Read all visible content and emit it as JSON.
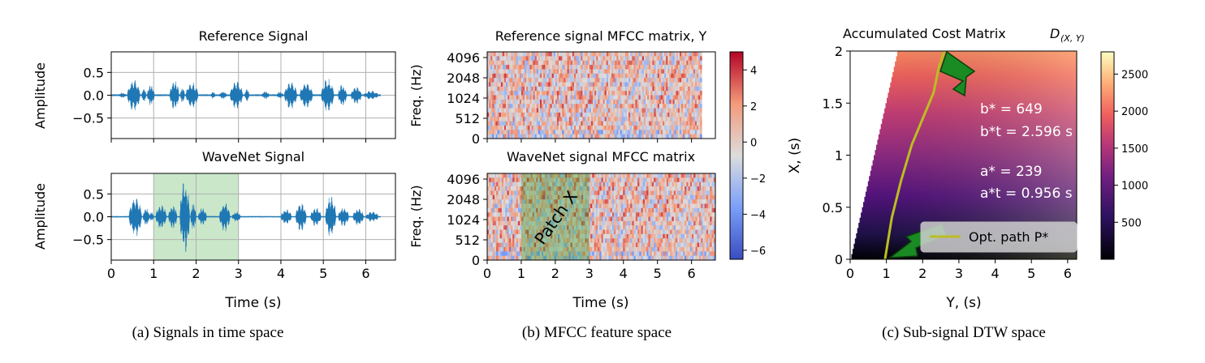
{
  "chart_data": [
    {
      "type": "line",
      "title": "Reference Signal",
      "xlabel": "",
      "ylabel": "Amplitude",
      "xlim": [
        0,
        6.7
      ],
      "ylim": [
        -0.95,
        0.95
      ],
      "xticks": [
        0,
        1,
        2,
        3,
        4,
        5,
        6
      ],
      "yticks": [
        0.5,
        0.0,
        -0.5
      ],
      "ytick_labels": [
        "0.5",
        "0.0",
        "−0.5"
      ],
      "grid": true,
      "series_color": "#1f77b4",
      "bursts": [
        {
          "t0": 0.18,
          "t1": 0.35,
          "amp": 0.06
        },
        {
          "t0": 0.38,
          "t1": 0.68,
          "amp": 0.36
        },
        {
          "t0": 0.72,
          "t1": 0.82,
          "amp": 0.16
        },
        {
          "t0": 0.85,
          "t1": 1.02,
          "amp": 0.24
        },
        {
          "t0": 1.38,
          "t1": 1.6,
          "amp": 0.33
        },
        {
          "t0": 1.63,
          "t1": 1.73,
          "amp": 0.18
        },
        {
          "t0": 1.76,
          "t1": 2.05,
          "amp": 0.3
        },
        {
          "t0": 2.35,
          "t1": 2.45,
          "amp": 0.08
        },
        {
          "t0": 2.55,
          "t1": 2.72,
          "amp": 0.09
        },
        {
          "t0": 2.8,
          "t1": 3.1,
          "amp": 0.32
        },
        {
          "t0": 3.15,
          "t1": 3.25,
          "amp": 0.15
        },
        {
          "t0": 3.55,
          "t1": 3.72,
          "amp": 0.09
        },
        {
          "t0": 3.9,
          "t1": 4.05,
          "amp": 0.08
        },
        {
          "t0": 4.08,
          "t1": 4.38,
          "amp": 0.31
        },
        {
          "t0": 4.45,
          "t1": 4.75,
          "amp": 0.3
        },
        {
          "t0": 4.95,
          "t1": 5.25,
          "amp": 0.37
        },
        {
          "t0": 5.35,
          "t1": 5.55,
          "amp": 0.25
        },
        {
          "t0": 5.65,
          "t1": 5.9,
          "amp": 0.2
        },
        {
          "t0": 5.95,
          "t1": 6.3,
          "amp": 0.1
        }
      ],
      "noise_level": 0.02
    },
    {
      "type": "line",
      "title": "WaveNet Signal",
      "xlabel": "Time (s)",
      "ylabel": "Amplitude",
      "xlim": [
        0,
        6.7
      ],
      "ylim": [
        -0.95,
        0.95
      ],
      "xticks": [
        0,
        1,
        2,
        3,
        4,
        5,
        6
      ],
      "yticks": [
        0.5,
        0.0,
        -0.5
      ],
      "ytick_labels": [
        "0.5",
        "0.0",
        "−0.5"
      ],
      "grid": true,
      "series_color": "#1f77b4",
      "highlight_span": [
        1,
        3
      ],
      "highlight_color": "#2ca02c",
      "bursts": [
        {
          "t0": 0.42,
          "t1": 0.72,
          "amp": 0.45
        },
        {
          "t0": 0.75,
          "t1": 0.9,
          "amp": 0.2
        },
        {
          "t0": 0.9,
          "t1": 1.0,
          "amp": 0.1
        },
        {
          "t0": 1.05,
          "t1": 1.3,
          "amp": 0.3
        },
        {
          "t0": 1.35,
          "t1": 1.55,
          "amp": 0.28
        },
        {
          "t0": 1.62,
          "t1": 1.85,
          "amp": 0.85
        },
        {
          "t0": 1.87,
          "t1": 2.0,
          "amp": 0.3
        },
        {
          "t0": 2.05,
          "t1": 2.25,
          "amp": 0.2
        },
        {
          "t0": 2.55,
          "t1": 2.8,
          "amp": 0.33
        },
        {
          "t0": 2.85,
          "t1": 3.05,
          "amp": 0.12
        },
        {
          "t0": 4.0,
          "t1": 4.25,
          "amp": 0.18
        },
        {
          "t0": 4.35,
          "t1": 4.6,
          "amp": 0.34
        },
        {
          "t0": 4.7,
          "t1": 4.95,
          "amp": 0.22
        },
        {
          "t0": 5.05,
          "t1": 5.3,
          "amp": 0.48
        },
        {
          "t0": 5.35,
          "t1": 5.6,
          "amp": 0.22
        },
        {
          "t0": 5.7,
          "t1": 5.95,
          "amp": 0.2
        },
        {
          "t0": 6.0,
          "t1": 6.3,
          "amp": 0.12
        }
      ],
      "noise_level": 0.015
    },
    {
      "type": "heatmap",
      "title": "Reference signal MFCC matrix, Y",
      "xlabel": "",
      "ylabel": "Freq. (Hz)",
      "ytick_labels": [
        "4096",
        "2048",
        "1024",
        "512",
        "0"
      ],
      "xlim": [
        0,
        6.7
      ],
      "data_extent": [
        0,
        6.3
      ],
      "colormap": "coolwarm",
      "clim": [
        -6.5,
        5
      ]
    },
    {
      "type": "heatmap",
      "title": "WaveNet signal MFCC matrix",
      "xlabel": "Time (s)",
      "ylabel": "Freq. (Hz)",
      "xticks": [
        0,
        1,
        2,
        3,
        4,
        5,
        6
      ],
      "ytick_labels": [
        "4096",
        "2048",
        "1024",
        "512",
        "0"
      ],
      "xlim": [
        0,
        6.7
      ],
      "patch_span": [
        1,
        3
      ],
      "patch_label": "Patch X",
      "colormap": "coolwarm",
      "clim": [
        -6.5,
        5
      ],
      "colorbar_ticks": [
        4,
        2,
        0,
        -2,
        -4,
        -6
      ],
      "colorbar_tick_labels": [
        "4",
        "2",
        "0",
        "−2",
        "−4",
        "−6"
      ]
    },
    {
      "type": "heatmap",
      "title": "Accumulated Cost Matrix",
      "title_math": "D",
      "title_math_sub": "(X, Y)",
      "xlabel": "Y, (s)",
      "ylabel": "X, (s)",
      "xlim": [
        0,
        6.25
      ],
      "ylim": [
        0,
        2
      ],
      "xticks": [
        0,
        1,
        2,
        3,
        4,
        5,
        6
      ],
      "yticks": [
        0,
        0.5,
        1,
        1.5,
        2
      ],
      "ytick_labels": [
        "0",
        "0.5",
        "1",
        "1.5",
        "2"
      ],
      "colormap": "magma",
      "clim": [
        0,
        2800
      ],
      "colorbar_ticks": [
        2500,
        2000,
        1500,
        1000,
        500
      ],
      "valid_region_left_edge": [
        [
          0,
          0
        ],
        [
          1.3,
          2
        ]
      ],
      "optimal_path": [
        [
          0.96,
          0
        ],
        [
          1.15,
          0.4
        ],
        [
          1.4,
          0.75
        ],
        [
          1.7,
          1.1
        ],
        [
          2.0,
          1.35
        ],
        [
          2.3,
          1.6
        ],
        [
          2.45,
          1.85
        ],
        [
          2.6,
          2.0
        ]
      ],
      "path_color": "#bcbd22",
      "legend": [
        "Opt. path P*"
      ],
      "legend_loc": "lower right",
      "annotations": {
        "b_line": "b* = 649",
        "bt_line": "b*t = 2.596 s",
        "a_line": "a* = 239",
        "at_line": "a*t = 0.956 s"
      },
      "b_star": 649,
      "b_t_star": 2.596,
      "a_star": 239,
      "a_t_star": 0.956
    }
  ],
  "captions": {
    "a": "(a) Signals in time space",
    "b": "(b) MFCC feature space",
    "c": "(c) Sub-signal DTW space"
  }
}
